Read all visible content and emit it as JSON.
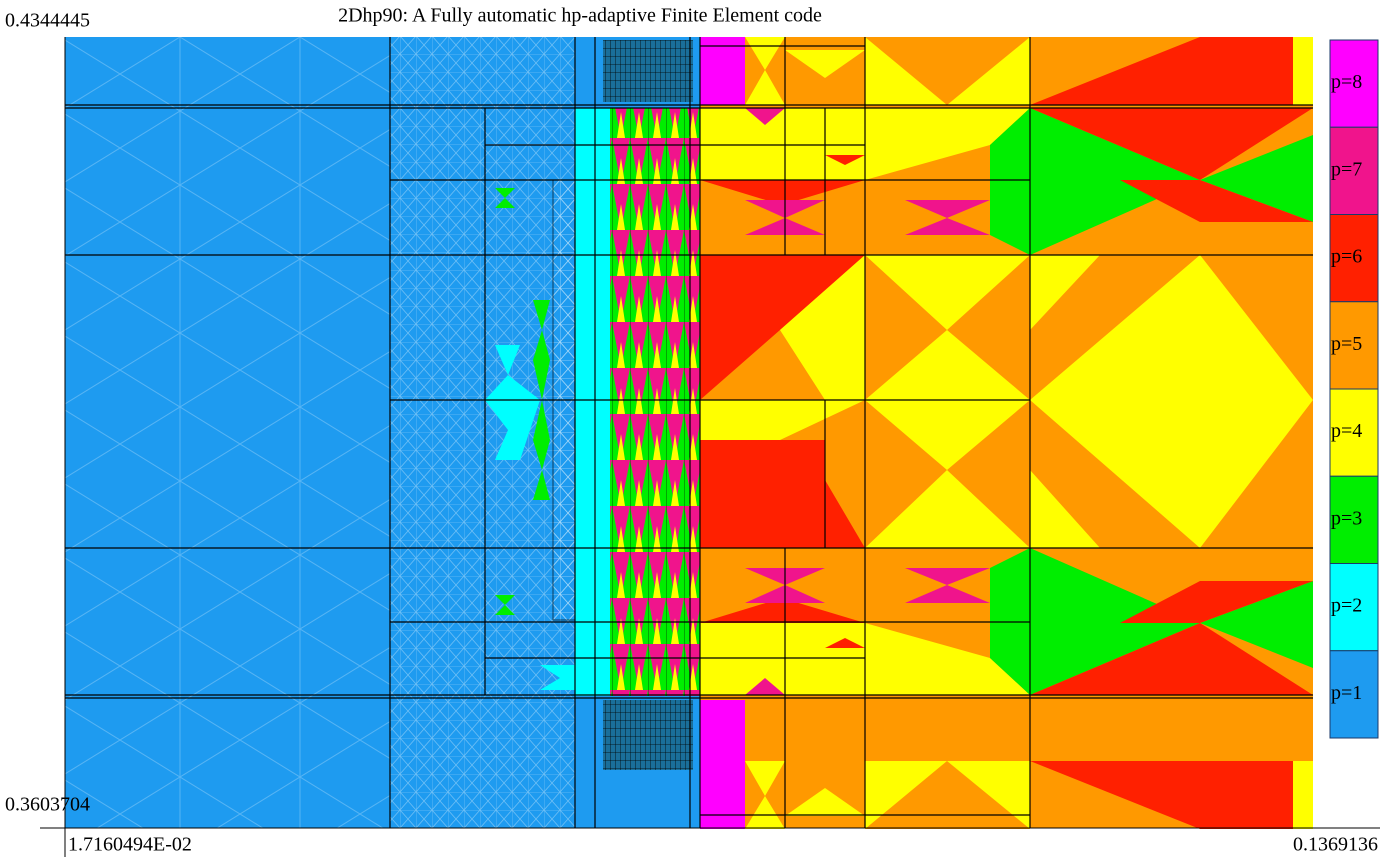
{
  "title": "2Dhp90: A Fully automatic hp-adaptive Finite Element code",
  "axis_labels": {
    "y_top": "0.4344445",
    "y_bottom": "0.3603704",
    "x_left": "1.7160494E-02",
    "x_right": "0.1369136"
  },
  "legend": [
    {
      "label": "p=8",
      "color": "#ff00ff"
    },
    {
      "label": "p=7",
      "color": "#f0148c"
    },
    {
      "label": "p=6",
      "color": "#ff2000"
    },
    {
      "label": "p=5",
      "color": "#ff9900"
    },
    {
      "label": "p=4",
      "color": "#ffff00"
    },
    {
      "label": "p=3",
      "color": "#00ee00"
    },
    {
      "label": "p=2",
      "color": "#00ffff"
    },
    {
      "label": "p=1",
      "color": "#1e9bf0"
    }
  ]
}
